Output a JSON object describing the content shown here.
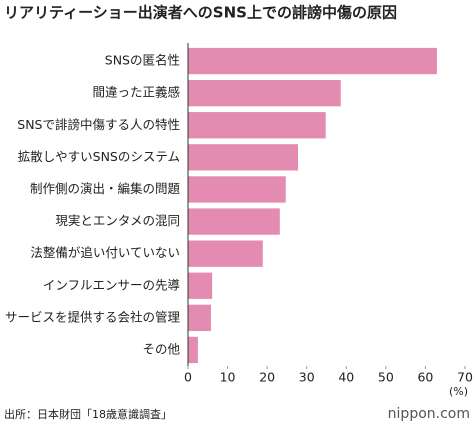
{
  "chart_data": {
    "type": "bar",
    "orientation": "horizontal",
    "title": "リアリティーショー出演者へのSNS上での誹謗中傷の原因",
    "categories": [
      "SNSの匿名性",
      "間違った正義感",
      "SNSで誹謗中傷する人の特性",
      "拡散しやすいSNSのシステム",
      "制作側の演出・編集の問題",
      "現実とエンタメの混同",
      "法整備が追い付いていない",
      "インフルエンサーの先導",
      "サービスを提供する会社の管理",
      "その他"
    ],
    "values": [
      62.9,
      38.6,
      34.8,
      27.8,
      24.7,
      23.2,
      18.9,
      6.1,
      5.8,
      2.5
    ],
    "color": "#e38bb0",
    "xlim": [
      0,
      70
    ],
    "xticks": [
      0,
      10,
      20,
      30,
      40,
      50,
      60,
      70
    ],
    "x_unit": "(%)",
    "source": "出所：日本財団「18歳意識調査」",
    "logo": "nippon.com"
  }
}
